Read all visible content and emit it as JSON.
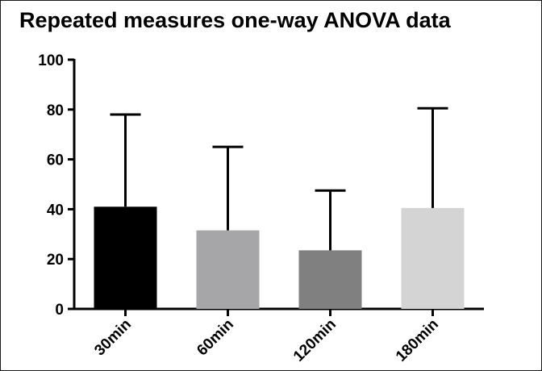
{
  "chart_data": {
    "type": "bar",
    "title": "Repeated measures one-way ANOVA data",
    "xlabel": "",
    "ylabel": "",
    "categories": [
      "30min",
      "60min",
      "120min",
      "180min"
    ],
    "values": [
      41,
      31.5,
      23.5,
      40.5
    ],
    "error_upper": [
      78,
      65,
      47.5,
      80.5
    ],
    "colors": [
      "#000000",
      "#a6a6a9",
      "#808080",
      "#d4d4d4"
    ],
    "ylim": [
      0,
      100
    ],
    "yticks": [
      0,
      20,
      40,
      60,
      80,
      100
    ],
    "grid": false,
    "legend": "none",
    "x_tick_rotation": -45
  }
}
